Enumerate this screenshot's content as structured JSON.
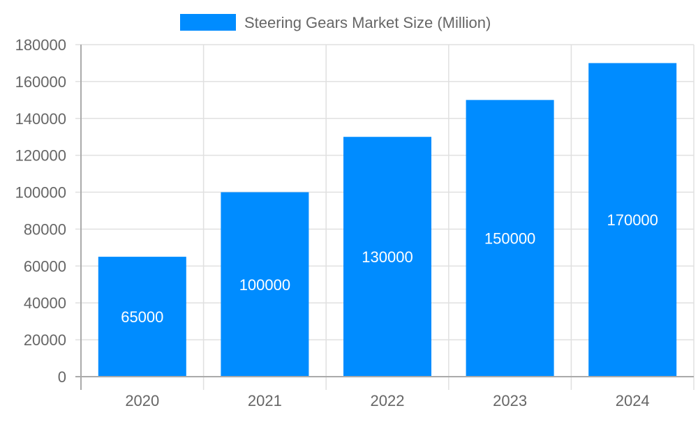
{
  "chart_data": {
    "type": "bar",
    "title": "",
    "legend": {
      "position": "top",
      "entries": [
        {
          "label": "Steering Gears Market Size (Million)",
          "color": "#008cff"
        }
      ]
    },
    "categories": [
      "2020",
      "2021",
      "2022",
      "2023",
      "2024"
    ],
    "series": [
      {
        "name": "Steering Gears Market Size (Million)",
        "values": [
          65000,
          100000,
          130000,
          150000,
          170000
        ],
        "color": "#008cff"
      }
    ],
    "data_labels": [
      "65000",
      "100000",
      "130000",
      "150000",
      "170000"
    ],
    "xlabel": "",
    "ylabel": "",
    "ylim": [
      0,
      180000
    ],
    "yticks": [
      "0",
      "20000",
      "40000",
      "60000",
      "80000",
      "100000",
      "120000",
      "140000",
      "160000",
      "180000"
    ],
    "grid": true
  },
  "colors": {
    "bar": "#008cff",
    "grid": "#e0e0e0",
    "axis": "#aaaaaa",
    "tick_text": "#666666",
    "label_text": "#ffffff"
  }
}
